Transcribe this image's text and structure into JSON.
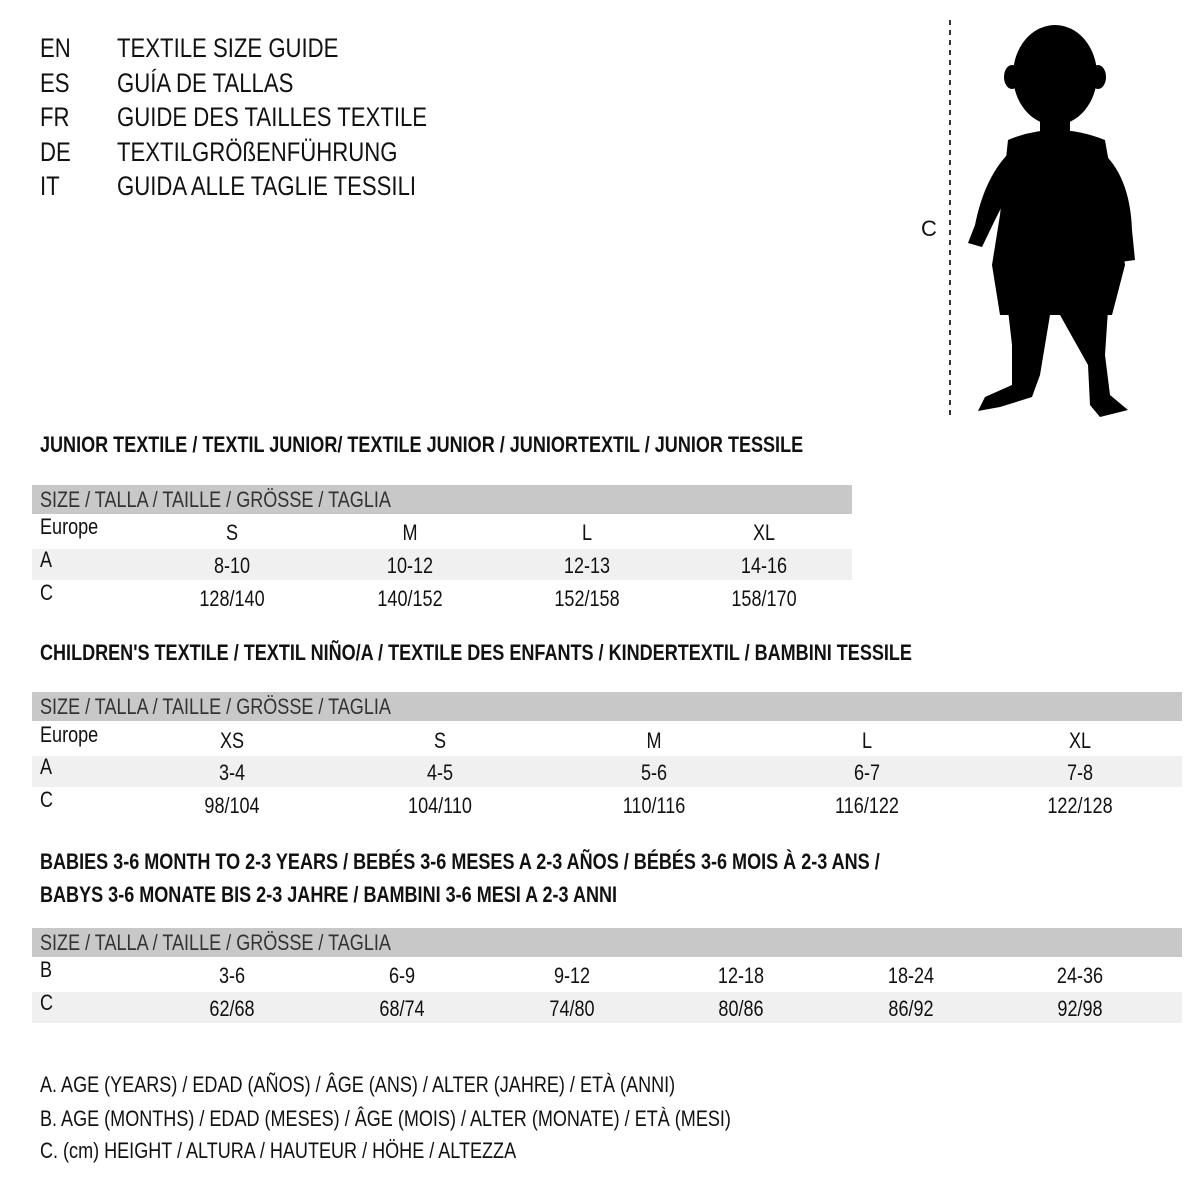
{
  "languages": [
    {
      "code": "EN",
      "title": "TEXTILE SIZE GUIDE"
    },
    {
      "code": "ES",
      "title": "GUÍA DE TALLAS"
    },
    {
      "code": "FR",
      "title": "GUIDE DES TAILLES TEXTILE"
    },
    {
      "code": "DE",
      "title": "TEXTILGRÖßENFÜHRUNG"
    },
    {
      "code": "IT",
      "title": "GUIDA ALLE TAGLIE TESSILI"
    }
  ],
  "figure": {
    "measure_label": "C",
    "icon": "baby-silhouette"
  },
  "size_header": "SIZE / TALLA / TAILLE / GRÖSSE / TAGLIA",
  "junior": {
    "heading": "JUNIOR TEXTILE / TEXTIL JUNIOR/ TEXTILE JUNIOR / JUNIORTEXTIL / JUNIOR TESSILE",
    "rows": [
      {
        "label": "Europe",
        "values": [
          "S",
          "M",
          "L",
          "XL"
        ]
      },
      {
        "label": "A",
        "values": [
          "8-10",
          "10-12",
          "12-13",
          "14-16"
        ]
      },
      {
        "label": "C",
        "values": [
          "128/140",
          "140/152",
          "152/158",
          "158/170"
        ]
      }
    ]
  },
  "children": {
    "heading": "CHILDREN'S TEXTILE / TEXTIL NIÑO/A / TEXTILE DES ENFANTS / KINDERTEXTIL / BAMBINI TESSILE",
    "rows": [
      {
        "label": "Europe",
        "values": [
          "XS",
          "S",
          "M",
          "L",
          "XL"
        ]
      },
      {
        "label": "A",
        "values": [
          "3-4",
          "4-5",
          "5-6",
          "6-7",
          "7-8"
        ]
      },
      {
        "label": "C",
        "values": [
          "98/104",
          "104/110",
          "110/116",
          "116/122",
          "122/128"
        ]
      }
    ]
  },
  "babies": {
    "heading_line1": "BABIES 3-6 MONTH TO 2-3 YEARS / BEBÉS 3-6 MESES A 2-3 AÑOS / BÉBÉS 3-6 MOIS À 2-3 ANS /",
    "heading_line2": "BABYS 3-6 MONATE BIS 2-3 JAHRE / BAMBINI 3-6 MESI A 2-3 ANNI",
    "rows": [
      {
        "label": "B",
        "values": [
          "3-6",
          "6-9",
          "9-12",
          "12-18",
          "18-24",
          "24-36"
        ]
      },
      {
        "label": "C",
        "values": [
          "62/68",
          "68/74",
          "74/80",
          "80/86",
          "86/92",
          "92/98"
        ]
      }
    ]
  },
  "legend": [
    "A. AGE (YEARS) / EDAD (AÑOS) / ÂGE (ANS) / ALTER (JAHRE) / ETÀ (ANNI)",
    "B. AGE (MONTHS) / EDAD (MESES) / ÂGE (MOIS) / ALTER (MONATE) / ETÀ (MESI)",
    "C. (cm) HEIGHT / ALTURA / HAUTEUR / HÖHE / ALTEZZA"
  ]
}
